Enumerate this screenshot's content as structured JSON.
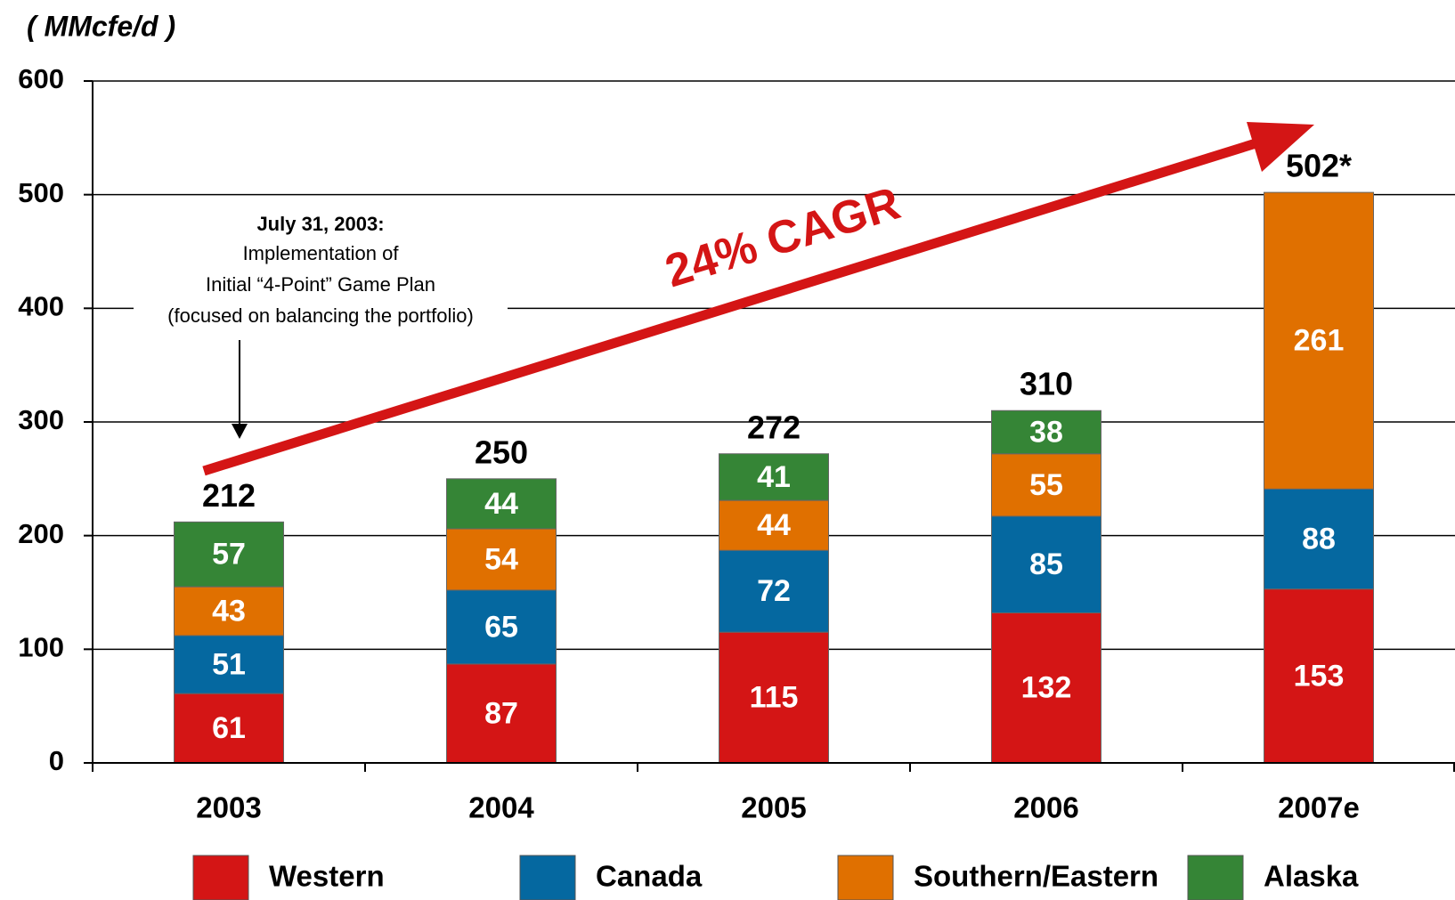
{
  "chart_data": {
    "type": "stacked_bar",
    "y_label": "( MMcfe/d )",
    "categories": [
      "2003",
      "2004",
      "2005",
      "2006",
      "2007e"
    ],
    "series": [
      {
        "name": "Western",
        "color": "#d41515",
        "values": [
          61,
          87,
          115,
          132,
          153
        ]
      },
      {
        "name": "Canada",
        "color": "#0568a0",
        "values": [
          51,
          65,
          72,
          85,
          88
        ]
      },
      {
        "name": "Southern/Eastern",
        "color": "#e07000",
        "values": [
          43,
          54,
          44,
          55,
          261
        ]
      },
      {
        "name": "Alaska",
        "color": "#358536",
        "values": [
          57,
          44,
          41,
          38,
          null
        ]
      }
    ],
    "totals": [
      212,
      250,
      272,
      310,
      502
    ],
    "total_labels": [
      "212",
      "250",
      "272",
      "310",
      "502*"
    ],
    "ylim": [
      0,
      600
    ],
    "yticks": [
      0,
      100,
      200,
      300,
      400,
      500,
      600
    ],
    "grid": true,
    "legend": "bottom",
    "annotations": {
      "note_title": "July 31, 2003:",
      "note_lines": [
        "Implementation of",
        "Initial “4-Point” Game Plan",
        "(focused on balancing the portfolio)"
      ],
      "growth": "24% CAGR"
    }
  }
}
